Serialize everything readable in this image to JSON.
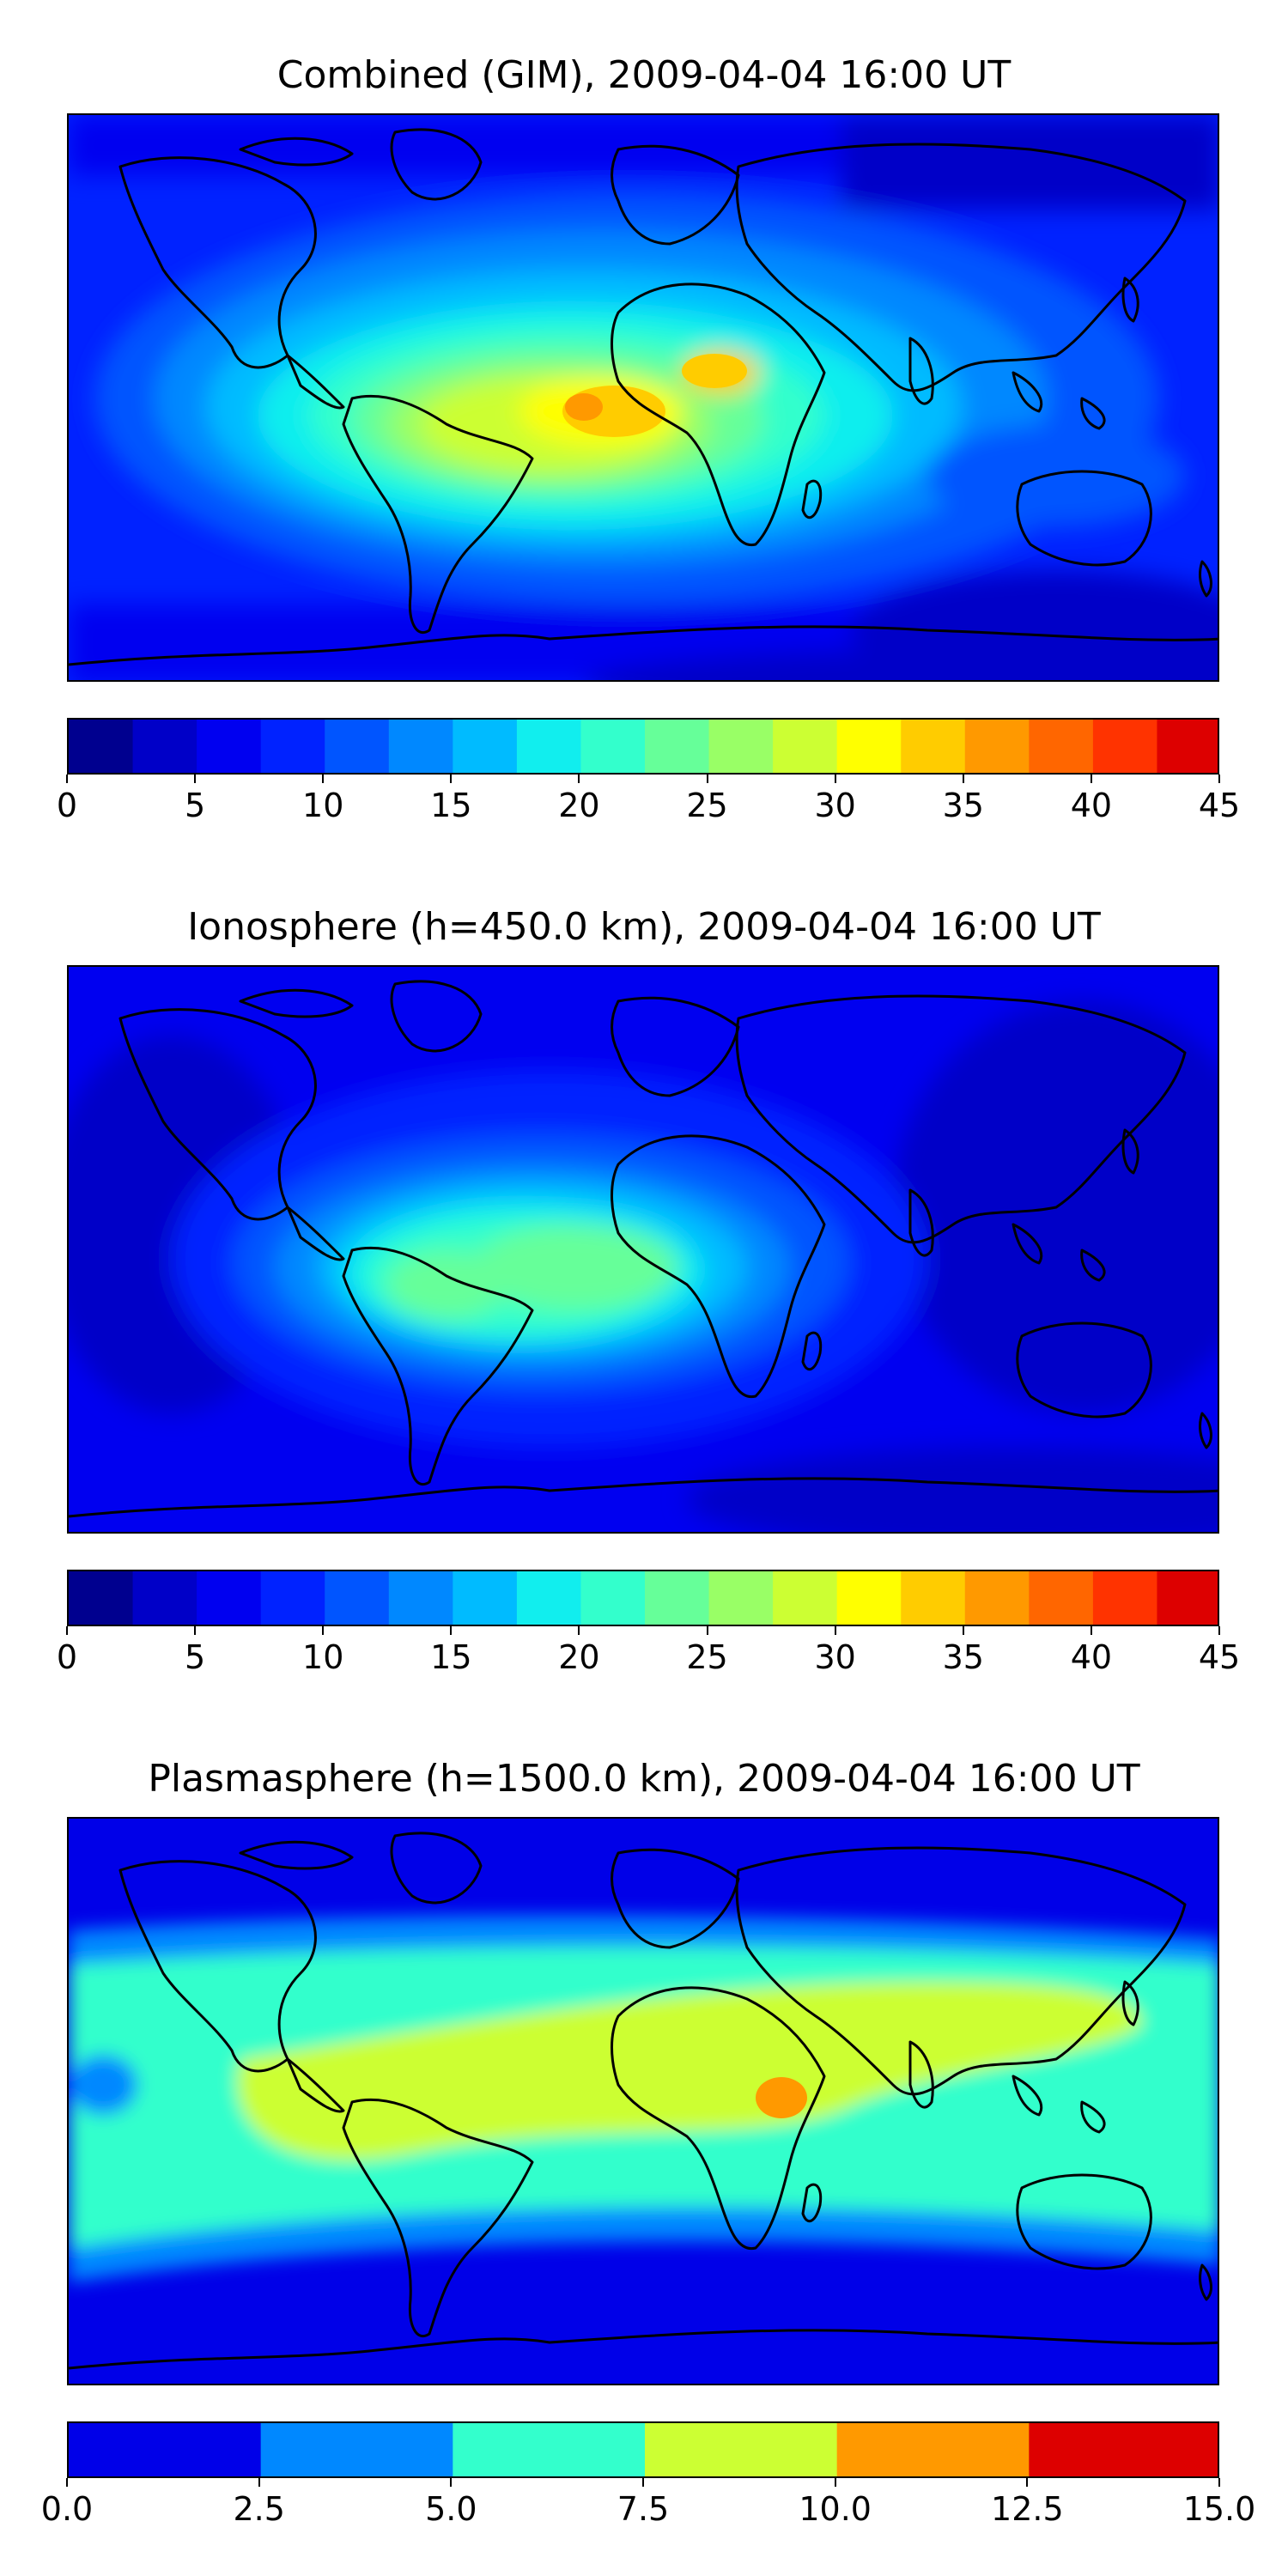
{
  "chart_data": [
    {
      "type": "heatmap",
      "title": "Combined (GIM), 2009-04-04 16:00 UT",
      "colorbar": {
        "range": [
          0,
          45
        ],
        "levels": [
          0,
          2.5,
          5,
          7.5,
          10,
          12.5,
          15,
          17.5,
          20,
          22.5,
          25,
          27.5,
          30,
          32.5,
          35,
          37.5,
          40,
          42.5,
          45
        ],
        "colors": [
          "#00008f",
          "#0000c8",
          "#0000f0",
          "#0022ff",
          "#0055ff",
          "#0088ff",
          "#00bbff",
          "#11eeee",
          "#33ffcc",
          "#66ff99",
          "#99ff66",
          "#ccff33",
          "#ffff00",
          "#ffcc00",
          "#ff9900",
          "#ff6600",
          "#ff3300",
          "#dd0000",
          "#990000"
        ],
        "ticks": [
          0,
          5,
          10,
          15,
          20,
          25,
          30,
          35,
          40,
          45
        ],
        "tick_labels": [
          "0",
          "5",
          "10",
          "15",
          "20",
          "25",
          "30",
          "35",
          "40",
          "45"
        ]
      },
      "background_value": 6,
      "peak_value": 32,
      "peak_region": "equatorial Atlantic / central Africa"
    },
    {
      "type": "heatmap",
      "title": "Ionosphere  (h=450.0 km), 2009-04-04 16:00 UT",
      "colorbar": {
        "range": [
          0,
          45
        ],
        "levels": [
          0,
          2.5,
          5,
          7.5,
          10,
          12.5,
          15,
          17.5,
          20,
          22.5,
          25,
          27.5,
          30,
          32.5,
          35,
          37.5,
          40,
          42.5,
          45
        ],
        "colors": [
          "#00008f",
          "#0000c8",
          "#0000f0",
          "#0022ff",
          "#0055ff",
          "#0088ff",
          "#00bbff",
          "#11eeee",
          "#33ffcc",
          "#66ff99",
          "#99ff66",
          "#ccff33",
          "#ffff00",
          "#ffcc00",
          "#ff9900",
          "#ff6600",
          "#ff3300",
          "#dd0000",
          "#990000"
        ],
        "ticks": [
          0,
          5,
          10,
          15,
          20,
          25,
          30,
          35,
          40,
          45
        ],
        "tick_labels": [
          "0",
          "5",
          "10",
          "15",
          "20",
          "25",
          "30",
          "35",
          "40",
          "45"
        ]
      },
      "background_value": 4,
      "peak_value": 23,
      "peak_region": "South America / equatorial Africa"
    },
    {
      "type": "heatmap",
      "title": "Plasmasphere (h=1500.0 km), 2009-04-04 16:00 UT",
      "colorbar": {
        "range": [
          0,
          15
        ],
        "levels": [
          0,
          2.5,
          5,
          7.5,
          10,
          12.5,
          15
        ],
        "colors": [
          "#0000e8",
          "#0088ff",
          "#33ffcc",
          "#ccff33",
          "#ff9900",
          "#dd0000"
        ],
        "ticks": [
          0,
          2.5,
          5,
          7.5,
          10,
          12.5,
          15
        ],
        "tick_labels": [
          "0.0",
          "2.5",
          "5.0",
          "7.5",
          "10.0",
          "12.5",
          "15.0"
        ]
      },
      "background_value": 1,
      "peak_value": 11,
      "peak_region": "East Africa"
    }
  ]
}
